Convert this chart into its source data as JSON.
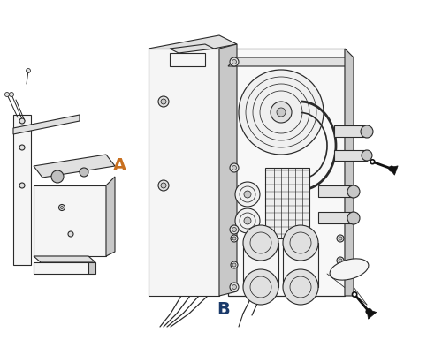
{
  "background_color": "#ffffff",
  "label_A": "A",
  "label_B": "B",
  "label_A_color": "#c87020",
  "label_B_color": "#1a3a6a",
  "label_fontsize": 14,
  "lc": "#2a2a2a",
  "lw": 0.8,
  "figsize": [
    5.0,
    3.85
  ],
  "dpi": 100,
  "fc_light": "#f5f5f5",
  "fc_mid": "#e0e0e0",
  "fc_dark": "#c8c8c8",
  "fc_black": "#111111"
}
